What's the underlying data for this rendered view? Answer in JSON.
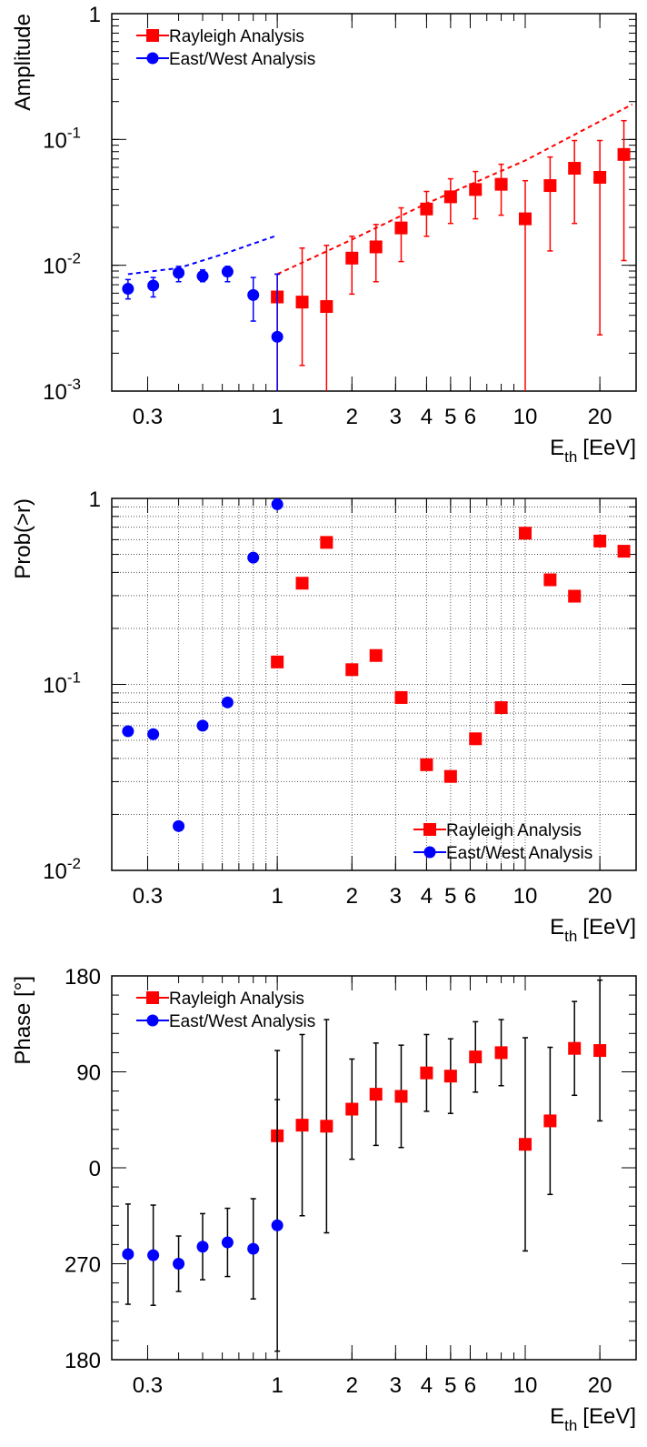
{
  "chart_data": [
    {
      "type": "scatter",
      "ylabel": "Amplitude",
      "xlabel": "E",
      "xlabel_sub": "th",
      "xlabel_rest": "[EeV]",
      "xlog": true,
      "ylog": true,
      "grid": false,
      "legend": "upper left",
      "xlim": [
        0.215,
        28
      ],
      "xticks": [
        0.3,
        1,
        2,
        3,
        4,
        5,
        6,
        10,
        20
      ],
      "ylim": [
        0.001,
        1
      ],
      "yticks": [
        {
          "value": 0.001,
          "label": "10",
          "exponent": "-3"
        },
        {
          "value": 0.01,
          "label": "10",
          "exponent": "-2"
        },
        {
          "value": 0.1,
          "label": "10",
          "exponent": "-1"
        },
        1
      ],
      "series": [
        {
          "name": "Rayleigh Analysis",
          "color": "#ff0000",
          "marker": "square",
          "x": [
            1,
            1.26,
            1.58,
            2,
            2.5,
            3.16,
            4,
            5,
            6.3,
            8,
            10,
            12.6,
            15.8,
            20,
            25
          ],
          "values": [
            0.0056,
            0.0051,
            0.0047,
            0.0114,
            0.014,
            0.0198,
            0.028,
            0.035,
            0.04,
            0.044,
            0.0234,
            0.043,
            0.059,
            0.05,
            0.076
          ],
          "lower": [
            0.0001,
            0.0016,
            0.0001,
            0.0059,
            0.0074,
            0.0107,
            0.017,
            0.0215,
            0.0234,
            0.025,
            0.0001,
            0.013,
            0.0215,
            0.0028,
            0.0109
          ],
          "upper": [
            0.0085,
            0.0137,
            0.0144,
            0.017,
            0.0211,
            0.0286,
            0.0386,
            0.0487,
            0.0556,
            0.0635,
            0.047,
            0.0725,
            0.098,
            0.098,
            0.141
          ]
        },
        {
          "name": "East/West Analysis",
          "color": "#0000ff",
          "marker": "circle",
          "x": [
            0.25,
            0.316,
            0.4,
            0.5,
            0.63,
            0.8,
            1
          ],
          "values": [
            0.0065,
            0.0069,
            0.0087,
            0.0082,
            0.0089,
            0.0058,
            0.0027
          ],
          "lower": [
            0.0054,
            0.0056,
            0.0074,
            0.0074,
            0.0074,
            0.0036,
            0.0001
          ],
          "upper": [
            0.0077,
            0.008,
            0.0098,
            0.0092,
            0.0098,
            0.008,
            0.0085
          ]
        }
      ],
      "curves": [
        {
          "color": "#0000ff",
          "x": [
            0.25,
            0.4,
            0.6,
            1
          ],
          "values": [
            0.0085,
            0.0095,
            0.0122,
            0.0173
          ]
        },
        {
          "color": "#ff0000",
          "x": [
            1,
            2,
            4,
            10,
            27
          ],
          "values": [
            0.0085,
            0.016,
            0.031,
            0.068,
            0.19
          ]
        }
      ]
    },
    {
      "type": "scatter",
      "ylabel": "Prob(>r)",
      "xlabel": "E",
      "xlabel_sub": "th",
      "xlabel_rest": "[EeV]",
      "xlog": true,
      "ylog": true,
      "grid": true,
      "legend": "lower right",
      "xlim": [
        0.215,
        28
      ],
      "xticks": [
        0.3,
        1,
        2,
        3,
        4,
        5,
        6,
        10,
        20
      ],
      "ylim": [
        0.01,
        1
      ],
      "yticks": [
        {
          "value": 0.01,
          "label": "10",
          "exponent": "-2"
        },
        {
          "value": 0.1,
          "label": "10",
          "exponent": "-1"
        },
        1
      ],
      "series": [
        {
          "name": "Rayleigh Analysis",
          "color": "#ff0000",
          "marker": "square",
          "x": [
            1,
            1.26,
            1.58,
            2,
            2.5,
            3.16,
            4,
            5,
            6.3,
            8,
            10,
            12.6,
            15.8,
            20,
            25
          ],
          "values": [
            0.132,
            0.35,
            0.58,
            0.12,
            0.143,
            0.085,
            0.037,
            0.032,
            0.051,
            0.075,
            0.65,
            0.365,
            0.298,
            0.59,
            0.52
          ]
        },
        {
          "name": "East/West Analysis",
          "color": "#0000ff",
          "marker": "circle",
          "x": [
            0.25,
            0.316,
            0.4,
            0.5,
            0.63,
            0.8,
            1
          ],
          "values": [
            0.056,
            0.054,
            0.0173,
            0.06,
            0.08,
            0.48,
            0.93
          ]
        }
      ]
    },
    {
      "type": "scatter",
      "ylabel": "Phase [°]",
      "xlabel": "E",
      "xlabel_sub": "th",
      "xlabel_rest": "[EeV]",
      "xlog": true,
      "ylog": false,
      "grid": false,
      "legend": "upper left",
      "error_color": "#000000",
      "xlim": [
        0.215,
        28
      ],
      "xticks": [
        0.3,
        1,
        2,
        3,
        4,
        5,
        6,
        10,
        20
      ],
      "ylim": [
        -180,
        180
      ],
      "yticks": [
        {
          "value": -180,
          "label": "180"
        },
        {
          "value": -90,
          "label": "270"
        },
        0,
        90,
        180
      ],
      "series": [
        {
          "name": "Rayleigh Analysis",
          "color": "#ff0000",
          "marker": "square",
          "x": [
            1,
            1.26,
            1.58,
            2,
            2.5,
            3.16,
            4,
            5,
            6.3,
            8,
            10,
            12.6,
            15.8,
            20
          ],
          "values": [
            30,
            40,
            39,
            55,
            69,
            67,
            89,
            86,
            104,
            108,
            22,
            44,
            112,
            110
          ],
          "errors": [
            80,
            85,
            100,
            47,
            48,
            48,
            36,
            35,
            33,
            31,
            100,
            69,
            44,
            66
          ]
        },
        {
          "name": "East/West Analysis",
          "color": "#0000ff",
          "marker": "circle",
          "x": [
            0.25,
            0.316,
            0.4,
            0.5,
            0.63,
            0.8,
            1
          ],
          "values": [
            -81,
            -82,
            -90,
            -74,
            -70,
            -76,
            -54
          ],
          "errors": [
            47,
            47,
            26,
            31,
            32,
            47,
            118
          ]
        }
      ]
    }
  ]
}
